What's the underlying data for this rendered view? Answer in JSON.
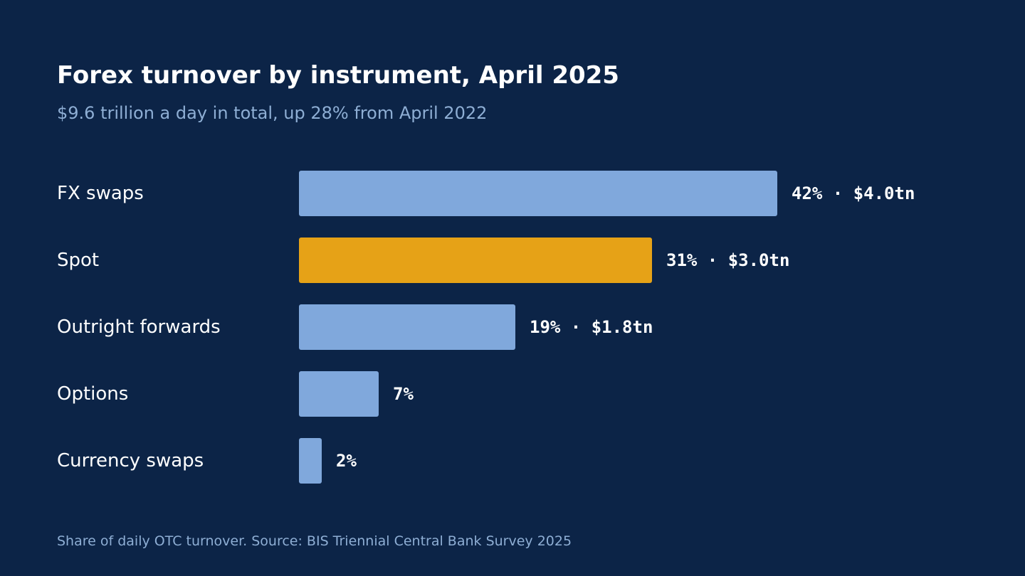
{
  "title": "Forex turnover by instrument, April 2025",
  "subtitle": "$9.6 trillion a day in total, up 28% from April 2022",
  "footnote": "Share of daily OTC turnover. Source: BIS Triennial Central Bank Survey 2025",
  "colors": {
    "background": "#0c2447",
    "bar_default": "#80a8dc",
    "bar_highlight": "#e6a217",
    "text": "#ffffff",
    "muted_text": "#8eaed4"
  },
  "chart_data": {
    "type": "bar",
    "orientation": "horizontal",
    "categories": [
      "FX swaps",
      "Spot",
      "Outright forwards",
      "Options",
      "Currency swaps"
    ],
    "values": [
      42,
      31,
      19,
      7,
      2
    ],
    "unit": "%",
    "value_labels": [
      "42% · $4.0tn",
      "31% · $3.0tn",
      "19% · $1.8tn",
      "7%",
      "2%"
    ],
    "highlight_category": "Spot",
    "xlabel": "",
    "ylabel": "",
    "grid": false,
    "legend": "none"
  }
}
